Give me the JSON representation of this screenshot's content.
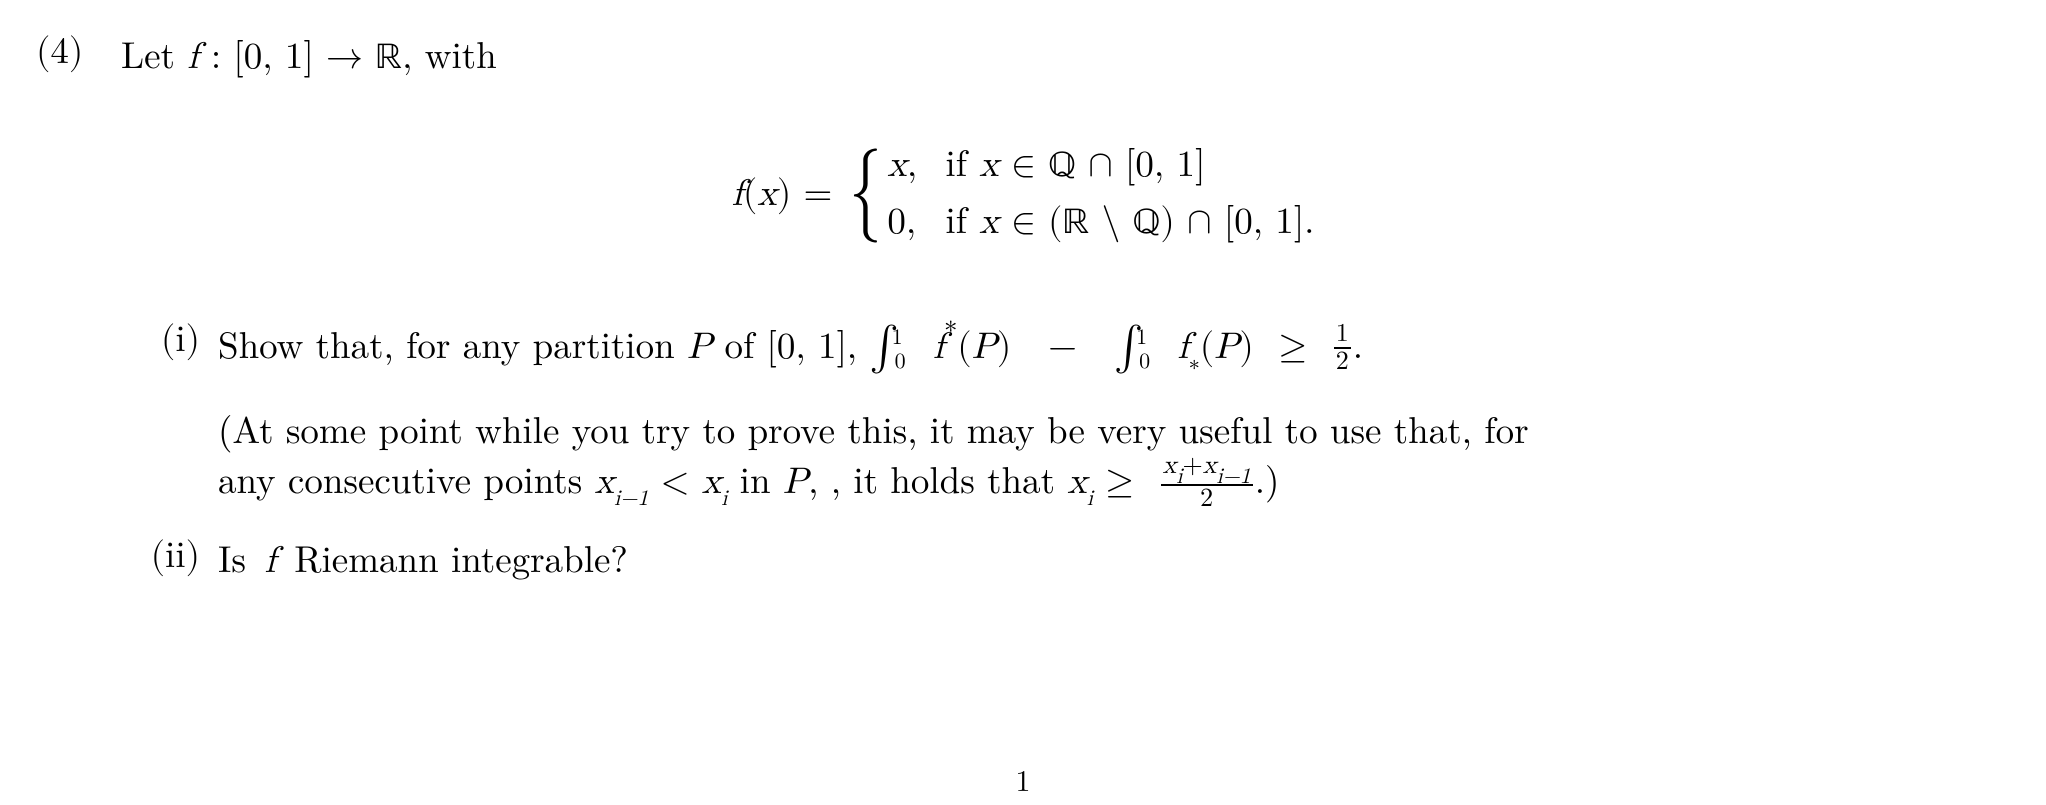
{
  "problem": {
    "number_label": "(4)",
    "lead_text_before_f": "Let ",
    "f_decl_html": "f : [0, 1] → ℝ,",
    "lead_text_after": " with",
    "piecewise": {
      "lhs": "f(x) =",
      "case1_val": "x,",
      "case1_cond": "if x ∈ ℚ ∩ [0, 1]",
      "case2_val": "0,",
      "case2_cond": "if x ∈ (ℝ \\ ℚ) ∩ [0, 1]."
    },
    "parts": {
      "i": {
        "label": "(i)",
        "text_prefix": "Show that, for any partition ",
        "P_of": " of [0, 1], ",
        "integral_upper": "f*",
        "integral_lower": "f∗",
        "Parg": "(P)",
        "geq_half_tail": ".",
        "hint_open": "(At some point while you try to prove this, it may be very useful to use that, for",
        "hint_line2_pre": "any consecutive points ",
        "hint_mid": " in ",
        "hint_post": ", it holds that ",
        "hint_close": ".)"
      },
      "ii": {
        "label": "(ii)",
        "text": "Is  f  Riemann integrable?"
      }
    }
  },
  "page_number": "1",
  "style": {
    "font_size_pt": 28,
    "text_color": "#000000",
    "background_color": "#ffffff"
  }
}
